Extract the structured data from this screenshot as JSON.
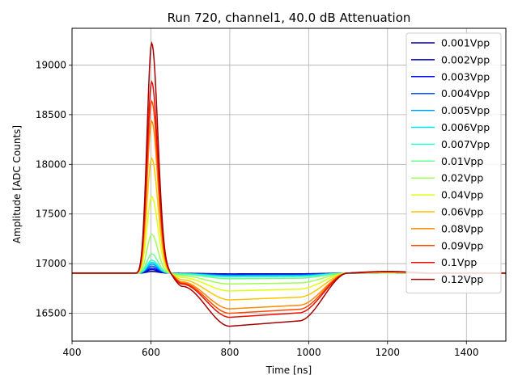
{
  "chart_data": {
    "type": "line",
    "title": "Run 720, channel1, 40.0 dB Attenuation",
    "xlabel": "Time [ns]",
    "ylabel": "Amplitude [ADC Counts]",
    "xlim": [
      400,
      1500
    ],
    "ylim": [
      16220,
      19370
    ],
    "xticks": [
      400,
      600,
      800,
      1000,
      1200,
      1400
    ],
    "yticks": [
      16500,
      17000,
      17500,
      18000,
      18500,
      19000
    ],
    "grid": true,
    "legend_position": "top-right",
    "baseline": 16905,
    "pulse_shape": {
      "rise_start": 560,
      "peak_time": 602,
      "peak_half_width": 22,
      "zero_cross": 680,
      "trough_floor_time": 800,
      "trough_end": 975,
      "recovery_end": 1100
    },
    "series": [
      {
        "name": "0.001Vpp",
        "peak": 16922,
        "trough": 16897,
        "color": "#00007f"
      },
      {
        "name": "0.002Vpp",
        "peak": 16940,
        "trough": 16893,
        "color": "#0000c5"
      },
      {
        "name": "0.003Vpp",
        "peak": 16955,
        "trough": 16889,
        "color": "#0010ff"
      },
      {
        "name": "0.004Vpp",
        "peak": 16975,
        "trough": 16884,
        "color": "#0058ff"
      },
      {
        "name": "0.005Vpp",
        "peak": 16995,
        "trough": 16879,
        "color": "#00a4ff"
      },
      {
        "name": "0.006Vpp",
        "peak": 17015,
        "trough": 16873,
        "color": "#00e4f8"
      },
      {
        "name": "0.007Vpp",
        "peak": 17035,
        "trough": 16867,
        "color": "#2cffca"
      },
      {
        "name": "0.01Vpp",
        "peak": 17098,
        "trough": 16848,
        "color": "#66ff90"
      },
      {
        "name": "0.02Vpp",
        "peak": 17295,
        "trough": 16795,
        "color": "#a0ff56"
      },
      {
        "name": "0.04Vpp",
        "peak": 17675,
        "trough": 16725,
        "color": "#dfff17"
      },
      {
        "name": "0.06Vpp",
        "peak": 18060,
        "trough": 16635,
        "color": "#ffc400"
      },
      {
        "name": "0.08Vpp",
        "peak": 18435,
        "trough": 16545,
        "color": "#ff8a00"
      },
      {
        "name": "0.09Vpp",
        "peak": 18635,
        "trough": 16500,
        "color": "#ff4800"
      },
      {
        "name": "0.1Vpp",
        "peak": 18830,
        "trough": 16460,
        "color": "#ec0d00"
      },
      {
        "name": "0.12Vpp",
        "peak": 19220,
        "trough": 16370,
        "color": "#a40000"
      }
    ]
  }
}
